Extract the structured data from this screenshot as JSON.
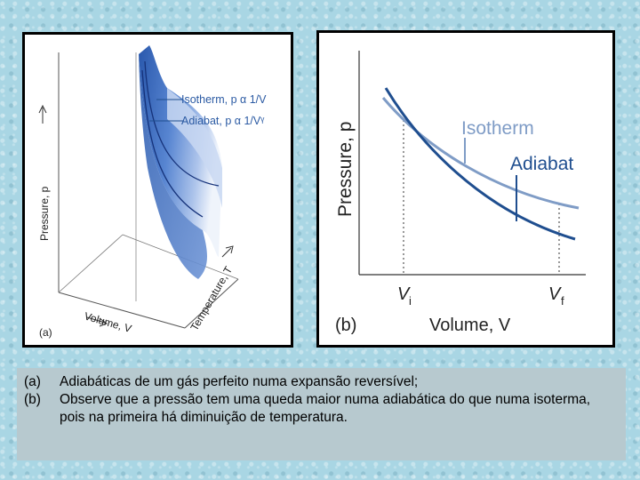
{
  "panel_a": {
    "label": "(a)",
    "axis_pressure": "Pressure, p",
    "axis_volume": "Volume, V",
    "axis_temperature": "Temperature, T",
    "legend_isotherm": "Isotherm, p α 1/V",
    "legend_adiabat": "Adiabat, p α 1/Vᵞ"
  },
  "panel_b": {
    "label": "(b)",
    "ylabel": "Pressure, p",
    "xlabel": "Volume, V",
    "isotherm_label": "Isotherm",
    "adiabat_label": "Adiabat",
    "vi_main": "V",
    "vi_sub": "i",
    "vf_main": "V",
    "vf_sub": "f"
  },
  "caption": {
    "a_letter": "(a)",
    "a_text": "Adiabáticas de um gás perfeito numa expansão reversível;",
    "b_letter": "(b)",
    "b_text": "Observe que a pressão tem uma queda maior numa adiabática do que numa isoterma, pois na primeira há diminuição de temperatura."
  },
  "colors": {
    "isotherm": "#7f9cc6",
    "adiabat": "#1f4e8f",
    "surface": "#3f6fbf",
    "caption_bg": "#b7c9cf"
  }
}
